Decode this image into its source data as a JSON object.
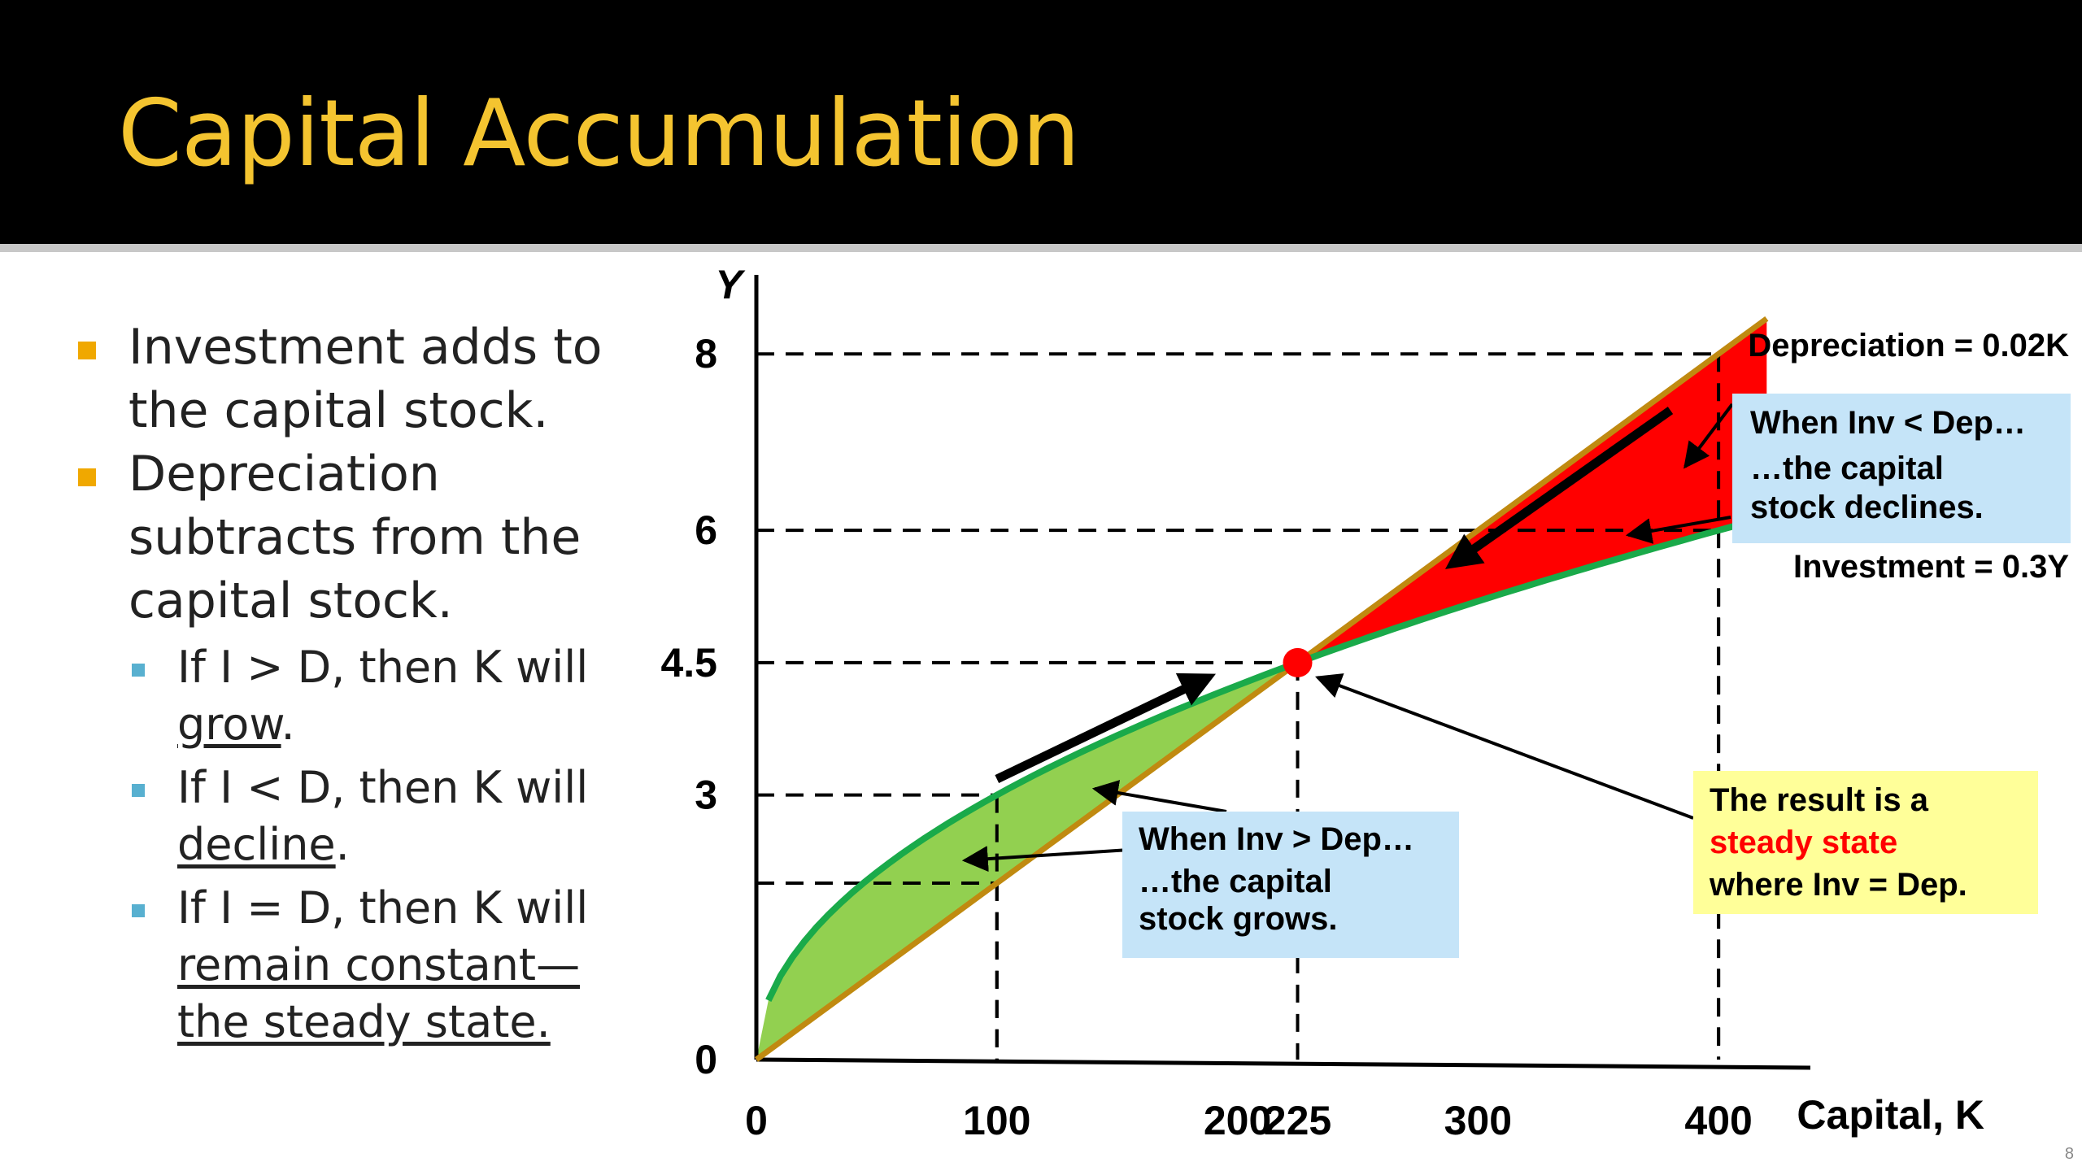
{
  "slide": {
    "title": "Capital Accumulation",
    "slide_number": "8"
  },
  "bullets": [
    {
      "level": 1,
      "text": "Investment adds to the capital stock."
    },
    {
      "level": 1,
      "text": "Depreciation subtracts from the capital stock."
    },
    {
      "level": 2,
      "pre": "If I > D, then K will ",
      "underlined": "grow",
      "post": "."
    },
    {
      "level": 2,
      "pre": "If I < D, then K will ",
      "underlined": "decline",
      "post": "."
    },
    {
      "level": 2,
      "pre": "If I = D, then K will ",
      "underlined": "remain constant—the steady state.",
      "post": ""
    }
  ],
  "chart_data": {
    "type": "line",
    "ylabel": "Y",
    "xlabel": "Capital, K",
    "x_ticks": [
      "0",
      "100",
      "200",
      "225",
      "300",
      "400"
    ],
    "y_ticks": [
      "0",
      "3",
      "4.5",
      "6",
      "8"
    ],
    "xlim": [
      0,
      545
    ],
    "ylim": [
      0,
      8.85
    ],
    "series": [
      {
        "name": "Depreciation = 0.02K",
        "color": "#c08a10",
        "points": [
          [
            0,
            0
          ],
          [
            100,
            2
          ],
          [
            200,
            4
          ],
          [
            225,
            4.5
          ],
          [
            300,
            6
          ],
          [
            400,
            8
          ],
          [
            420,
            8.4
          ]
        ]
      },
      {
        "name": "Investment = 0.3Y",
        "color": "#1aaa4a",
        "points": [
          [
            5,
            0.5
          ],
          [
            20,
            1.34
          ],
          [
            50,
            2.12
          ],
          [
            100,
            3
          ],
          [
            150,
            3.67
          ],
          [
            200,
            4.24
          ],
          [
            225,
            4.5
          ],
          [
            300,
            5.2
          ],
          [
            400,
            6
          ],
          [
            520,
            6.84
          ]
        ]
      }
    ],
    "reference_points": [
      {
        "x": 100,
        "y": 2
      },
      {
        "x": 100,
        "y": 3
      },
      {
        "x": 225,
        "y": 4.5
      },
      {
        "x": 400,
        "y": 6
      },
      {
        "x": 400,
        "y": 8
      }
    ],
    "steady_state": {
      "x": 225,
      "y": 4.5,
      "color": "#ff0000"
    },
    "regions": [
      {
        "label": "Inv > Dep",
        "color": "#92d050",
        "x_range": [
          5,
          225
        ]
      },
      {
        "label": "Inv < Dep",
        "color": "#ff0000",
        "x_range": [
          225,
          420
        ]
      }
    ],
    "annotations": {
      "grows": {
        "line1": "When Inv > Dep…",
        "line2": "…the capital",
        "line3": "stock grows."
      },
      "declines": {
        "line1": "When Inv < Dep…",
        "line2": "…the capital",
        "line3": "stock declines."
      },
      "steady": {
        "line1": "The result is a",
        "line2": "steady state",
        "line3": "where Inv = Dep."
      }
    },
    "annotation_colors": {
      "blue_box": "#c5e4f8",
      "yellow_box": "#ffff99",
      "highlight": "#ff0000"
    },
    "grid": false
  }
}
